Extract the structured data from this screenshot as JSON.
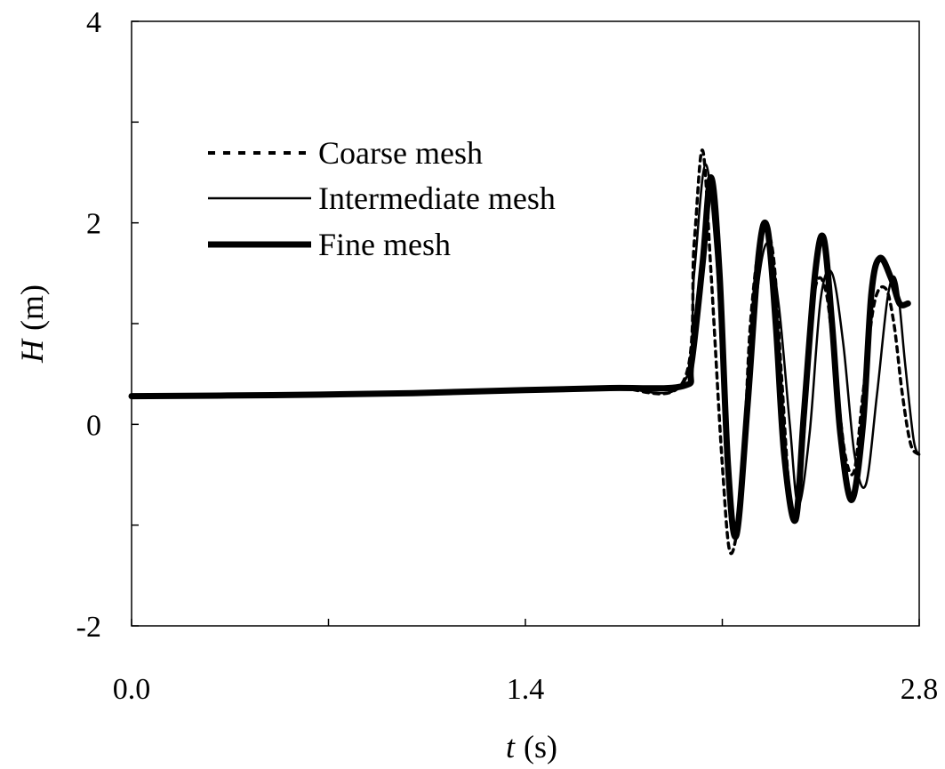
{
  "chart_data": {
    "type": "line",
    "xlabel_symbol": "t",
    "xlabel_unit": "(s)",
    "ylabel_symbol": "H",
    "ylabel_unit": "(m)",
    "xlim": [
      0,
      2.8
    ],
    "ylim": [
      -2,
      4
    ],
    "x_ticks": [
      0,
      1.4,
      2.8
    ],
    "x_tick_labels": [
      "0.0",
      "1.4",
      "2.8"
    ],
    "y_ticks": [
      -2,
      0,
      2,
      4
    ],
    "y_tick_labels": [
      "-2",
      "0",
      "2",
      "4"
    ],
    "grid": false,
    "legend_position": "top-left",
    "series": [
      {
        "name": "Coarse mesh",
        "style": "dotted",
        "x": [
          0,
          0.5,
          1.0,
          1.4,
          1.7,
          1.96,
          2.0,
          2.03,
          2.06,
          2.1,
          2.13,
          2.17,
          2.2,
          2.24,
          2.28,
          2.31,
          2.34,
          2.37,
          2.4,
          2.43,
          2.47,
          2.51,
          2.54,
          2.57,
          2.6,
          2.64,
          2.68,
          2.71,
          2.74,
          2.77,
          2.8
        ],
        "y": [
          0.28,
          0.29,
          0.31,
          0.34,
          0.37,
          0.42,
          1.8,
          2.72,
          1.5,
          -0.4,
          -1.28,
          -0.6,
          1.0,
          1.9,
          1.7,
          0.5,
          -0.7,
          -0.75,
          0.3,
          1.35,
          1.3,
          0.3,
          -0.35,
          -0.45,
          0.3,
          1.2,
          1.35,
          1.0,
          0.3,
          -0.2,
          -0.3
        ]
      },
      {
        "name": "Intermediate mesh",
        "style": "solid-thin",
        "x": [
          0,
          0.5,
          1.0,
          1.4,
          1.7,
          1.96,
          2.0,
          2.04,
          2.08,
          2.11,
          2.15,
          2.18,
          2.22,
          2.26,
          2.3,
          2.34,
          2.37,
          2.41,
          2.45,
          2.49,
          2.53,
          2.57,
          2.61,
          2.65,
          2.69,
          2.72,
          2.75,
          2.78,
          2.8
        ],
        "y": [
          0.28,
          0.29,
          0.31,
          0.34,
          0.37,
          0.4,
          1.5,
          2.58,
          1.6,
          0.0,
          -1.1,
          -0.3,
          1.2,
          1.8,
          1.2,
          0.0,
          -0.8,
          -0.1,
          1.25,
          1.5,
          0.8,
          -0.3,
          -0.6,
          0.3,
          1.3,
          1.4,
          0.6,
          -0.15,
          -0.3
        ]
      },
      {
        "name": "Fine mesh",
        "style": "solid-thick",
        "x": [
          0,
          0.5,
          1.0,
          1.4,
          1.7,
          1.96,
          1.99,
          2.03,
          2.06,
          2.09,
          2.12,
          2.15,
          2.19,
          2.23,
          2.26,
          2.29,
          2.32,
          2.36,
          2.39,
          2.43,
          2.46,
          2.49,
          2.52,
          2.56,
          2.6,
          2.63,
          2.66,
          2.7,
          2.73,
          2.76
        ],
        "y": [
          0.28,
          0.29,
          0.31,
          0.34,
          0.36,
          0.38,
          0.6,
          1.6,
          2.45,
          1.5,
          -0.4,
          -1.1,
          0.2,
          1.7,
          1.95,
          1.0,
          -0.3,
          -0.95,
          0.1,
          1.5,
          1.85,
          1.0,
          -0.1,
          -0.75,
          0.0,
          1.3,
          1.65,
          1.45,
          1.2,
          1.2
        ]
      }
    ]
  }
}
